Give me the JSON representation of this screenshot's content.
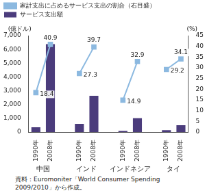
{
  "chart_data": {
    "type": "bar",
    "ylabel": "(億ドル)",
    "y2label": "(%)",
    "categories": [
      "1990年",
      "2008年",
      null,
      "1990年",
      "2008年",
      null,
      "1990年",
      "2008年",
      null,
      "1990年",
      "2008年"
    ],
    "groups": [
      "中国",
      "インド",
      "インドネシア",
      "タイ"
    ],
    "series": [
      {
        "name": "サービス支出額",
        "type": "bar",
        "color": "#4b3c7c",
        "values": [
          350,
          6380,
          null,
          600,
          2640,
          null,
          90,
          1010,
          null,
          140,
          500
        ]
      },
      {
        "name": "家計支出に占めるサービス支出の割合（右目盛）",
        "type": "line",
        "axis": "y2",
        "color": "#8cb9e0",
        "marker": "square",
        "line_style": "solid",
        "data_labels": true,
        "values": [
          18.4,
          40.9,
          null,
          27.3,
          39.7,
          null,
          14.9,
          32.9,
          null,
          29.2,
          34.1
        ]
      }
    ],
    "ylim": [
      0,
      7000
    ],
    "yticks": [
      0,
      {
        "value": 1000,
        "label": "1,000"
      },
      {
        "value": 2000,
        "label": "2,000"
      },
      {
        "value": 3000,
        "label": "3,000"
      },
      {
        "value": 4000,
        "label": "4,000"
      },
      {
        "value": 5000,
        "label": "5,000"
      },
      {
        "value": 6000,
        "label": "6,000"
      },
      {
        "value": 7000,
        "label": "7,000"
      }
    ],
    "y2lim": [
      0,
      45
    ],
    "y2ticks": [
      0,
      5,
      10,
      15,
      20,
      25,
      30,
      35,
      40,
      45
    ],
    "grid": false,
    "legend": "top-left",
    "source": "資料：Euromoniter「World Consumer Spending 2009/2010」から作成。"
  }
}
